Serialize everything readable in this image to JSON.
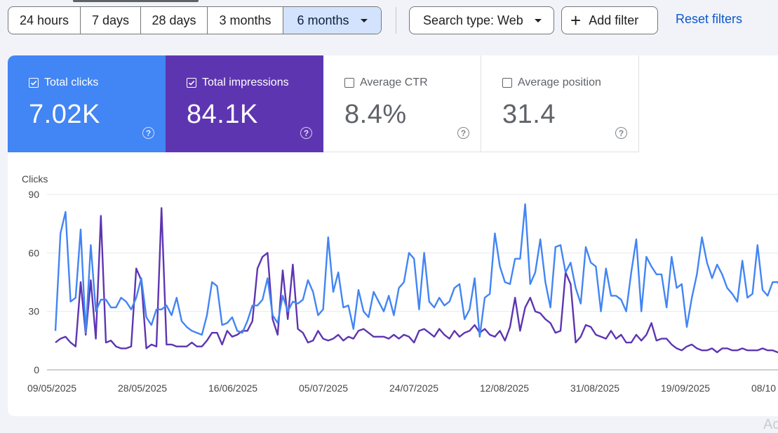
{
  "date_range": {
    "options": [
      "24 hours",
      "7 days",
      "28 days",
      "3 months",
      "6 months"
    ],
    "selected": "6 months"
  },
  "filters": {
    "search_type_label": "Search type: Web",
    "add_filter_label": "Add filter",
    "reset_label": "Reset filters"
  },
  "metrics": [
    {
      "label": "Total clicks",
      "value": "7.02K",
      "checked": true,
      "color": "#4285f4"
    },
    {
      "label": "Total impressions",
      "value": "84.1K",
      "checked": true,
      "color": "#5e35b1"
    },
    {
      "label": "Average CTR",
      "value": "8.4%",
      "checked": false
    },
    {
      "label": "Average position",
      "value": "31.4",
      "checked": false
    }
  ],
  "watermark": "Ac",
  "chart_data": {
    "type": "line",
    "ylabel": "Clicks",
    "ylim": [
      0,
      90
    ],
    "yticks": [
      0,
      30,
      60,
      90
    ],
    "grid": true,
    "x_start": "09/05/2025",
    "xtick_labels": [
      "09/05/2025",
      "28/05/2025",
      "16/06/2025",
      "05/07/2025",
      "24/07/2025",
      "12/08/2025",
      "31/08/2025",
      "19/09/2025",
      "08/10"
    ],
    "series": [
      {
        "color": "#4285f4",
        "values": [
          20,
          70,
          81,
          35,
          37,
          72,
          19,
          64,
          30,
          36,
          36,
          32,
          32,
          37,
          35,
          31,
          37,
          47,
          27,
          23,
          31,
          31,
          33,
          28,
          37,
          25,
          22,
          20,
          19,
          18,
          28,
          45,
          43,
          23,
          24,
          27,
          20,
          19,
          25,
          33,
          33,
          36,
          47,
          28,
          24,
          38,
          30,
          35,
          34,
          36,
          46,
          40,
          28,
          31,
          68,
          40,
          50,
          32,
          33,
          21,
          41,
          30,
          27,
          40,
          35,
          30,
          38,
          28,
          42,
          45,
          60,
          57,
          31,
          60,
          35,
          32,
          37,
          33,
          35,
          42,
          44,
          26,
          31,
          47,
          17,
          37,
          39,
          70,
          53,
          45,
          44,
          57,
          57,
          85,
          44,
          50,
          67,
          45,
          32,
          63,
          64,
          50,
          55,
          42,
          34,
          63,
          55,
          53,
          30,
          52,
          38,
          38,
          36,
          30,
          50,
          67,
          30,
          58,
          53,
          49,
          49,
          32,
          58,
          42,
          44,
          22,
          37,
          49,
          68,
          55,
          47,
          54,
          49,
          42,
          39,
          35,
          56,
          37,
          39,
          64,
          41,
          38,
          45,
          45,
          40,
          39,
          28,
          26,
          40,
          24,
          30,
          35,
          26,
          30,
          26,
          36,
          34,
          60
        ],
        "type": "line"
      },
      {
        "color": "#5e35b1",
        "values": [
          14,
          16,
          17,
          14,
          12,
          45,
          18,
          46,
          16,
          79,
          14,
          15,
          12,
          11,
          11,
          12,
          52,
          46,
          11,
          13,
          12,
          83,
          13,
          13,
          12,
          12,
          12,
          14,
          12,
          12,
          15,
          19,
          19,
          13,
          20,
          17,
          18,
          20,
          20,
          25,
          52,
          58,
          60,
          26,
          18,
          51,
          26,
          54,
          21,
          19,
          14,
          15,
          20,
          16,
          15,
          16,
          18,
          15,
          17,
          16,
          20,
          21,
          19,
          17,
          17,
          17,
          16,
          18,
          16,
          18,
          17,
          14,
          20,
          21,
          19,
          17,
          21,
          18,
          16,
          20,
          17,
          19,
          20,
          23,
          19,
          21,
          18,
          17,
          20,
          15,
          22,
          37,
          20,
          32,
          37,
          30,
          29,
          26,
          24,
          19,
          20,
          50,
          44,
          14,
          17,
          23,
          22,
          18,
          17,
          16,
          20,
          16,
          18,
          14,
          14,
          18,
          15,
          18,
          24,
          15,
          16,
          16,
          13,
          11,
          10,
          12,
          13,
          11,
          10,
          10,
          11,
          9,
          11,
          11,
          10,
          10,
          11,
          10,
          10,
          10,
          11,
          10,
          10,
          9,
          9,
          10,
          9,
          10,
          12,
          11,
          10,
          12,
          12,
          12
        ],
        "type": "line"
      }
    ]
  }
}
